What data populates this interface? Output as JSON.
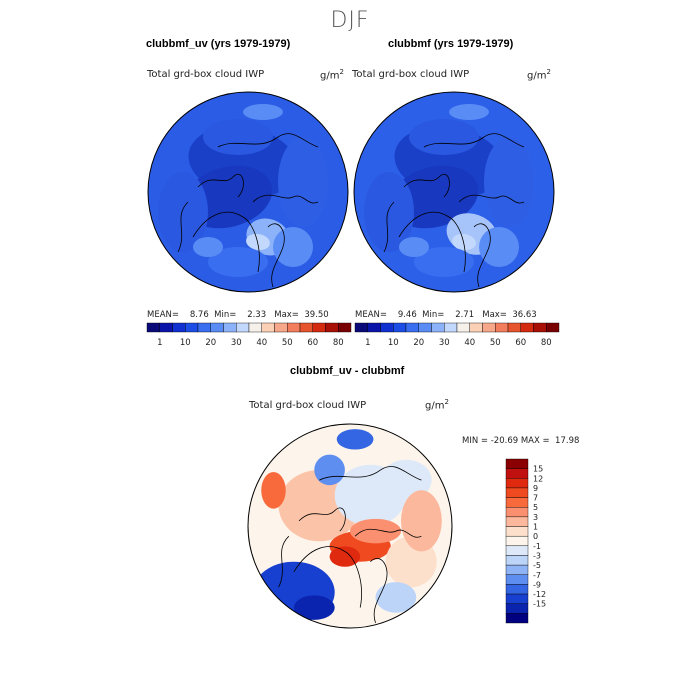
{
  "chart_data": [
    {
      "type": "heatmap",
      "projection": "north polar stereographic",
      "title": "clubbmf_uv (yrs 1979-1979)",
      "variable_label": "Total grd-box cloud IWP",
      "units": "g/m2",
      "stats": {
        "mean_label": "MEAN=",
        "mean": "8.76",
        "min_label": "Min=",
        "min": "2.33",
        "max_label": "Max=",
        "max": "39.50"
      },
      "colorbar": {
        "orientation": "horizontal",
        "tick_labels": [
          "1",
          "10",
          "20",
          "30",
          "40",
          "50",
          "60",
          "80"
        ],
        "colors": [
          "#0a0a78",
          "#0b14a8",
          "#1030d0",
          "#1c4ee6",
          "#3a6ef0",
          "#5a8cf5",
          "#8cb2fa",
          "#c2d8fc",
          "#f5f0ea",
          "#fbd0b4",
          "#f7a88a",
          "#f27e5e",
          "#e6552e",
          "#d42a10",
          "#a81006",
          "#780000"
        ]
      }
    },
    {
      "type": "heatmap",
      "projection": "north polar stereographic",
      "title": "clubbmf (yrs 1979-1979)",
      "variable_label": "Total grd-box cloud IWP",
      "units": "g/m2",
      "stats": {
        "mean_label": "MEAN=",
        "mean": "9.46",
        "min_label": "Min=",
        "min": "2.71",
        "max_label": "Max=",
        "max": "36.63"
      },
      "colorbar": {
        "orientation": "horizontal",
        "tick_labels": [
          "1",
          "10",
          "20",
          "30",
          "40",
          "50",
          "60",
          "80"
        ],
        "colors": [
          "#0a0a78",
          "#0b14a8",
          "#1030d0",
          "#1c4ee6",
          "#3a6ef0",
          "#5a8cf5",
          "#8cb2fa",
          "#c2d8fc",
          "#f5f0ea",
          "#fbd0b4",
          "#f7a88a",
          "#f27e5e",
          "#e6552e",
          "#d42a10",
          "#a81006",
          "#780000"
        ]
      }
    },
    {
      "type": "heatmap",
      "projection": "north polar stereographic",
      "title": "clubbmf_uv - clubbmf",
      "variable_label": "Total grd-box cloud IWP",
      "units": "g/m2",
      "stats": {
        "min_label": "MIN =",
        "min": "-20.69",
        "max_label": "MAX =",
        "max": "17.98"
      },
      "colorbar": {
        "orientation": "vertical",
        "tick_labels": [
          "15",
          "12",
          "9",
          "7",
          "5",
          "3",
          "1",
          "0",
          "-1",
          "-3",
          "-5",
          "-7",
          "-9",
          "-12",
          "-15"
        ],
        "colors": [
          "#8b0000",
          "#c01010",
          "#e02a10",
          "#f04a20",
          "#f86a3c",
          "#fb9070",
          "#fcb89c",
          "#fde0cc",
          "#fdf5ec",
          "#dde8f8",
          "#bcd4f8",
          "#8fb4f6",
          "#5e8ef0",
          "#3466e4",
          "#1840d0",
          "#0a24b0",
          "#000080"
        ]
      }
    }
  ],
  "figure_title": "DJF"
}
